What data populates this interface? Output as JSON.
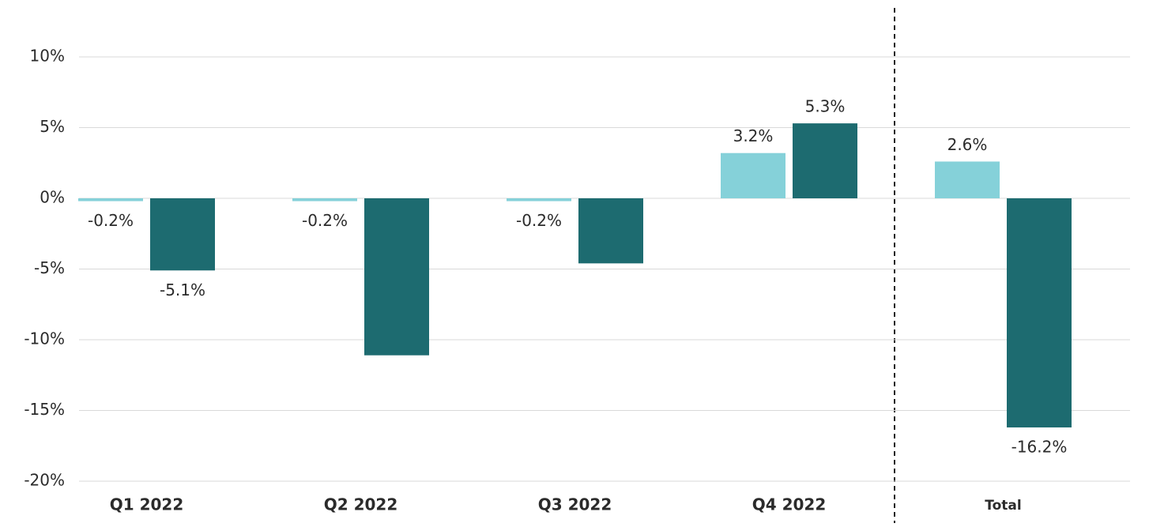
{
  "chart_data": {
    "type": "bar",
    "categories": [
      "Q1 2022",
      "Q2 2022",
      "Q3 2022",
      "Q4 2022",
      "Total"
    ],
    "series": [
      {
        "color": "#85d1d9",
        "values": [
          -0.2,
          -0.2,
          -0.2,
          3.2,
          2.6
        ],
        "value_labels": [
          "-0.2%",
          "-0.2%",
          "-0.2%",
          "3.2%",
          "2.6%"
        ]
      },
      {
        "color": "#1d6b70",
        "values": [
          -5.1,
          -11.1,
          -4.6,
          5.3,
          -16.2
        ],
        "value_labels": [
          "-5.1%",
          null,
          null,
          "5.3%",
          "-16.2%"
        ]
      }
    ],
    "ylim": [
      -20,
      10
    ],
    "yticks": [
      {
        "value": -20,
        "label": "-20%"
      },
      {
        "value": -15,
        "label": "-15%"
      },
      {
        "value": -10,
        "label": "-10%"
      },
      {
        "value": -5,
        "label": "-5%"
      },
      {
        "value": 0,
        "label": "0%"
      },
      {
        "value": 5,
        "label": "5%"
      },
      {
        "value": 10,
        "label": "10%"
      }
    ],
    "grid": true
  }
}
